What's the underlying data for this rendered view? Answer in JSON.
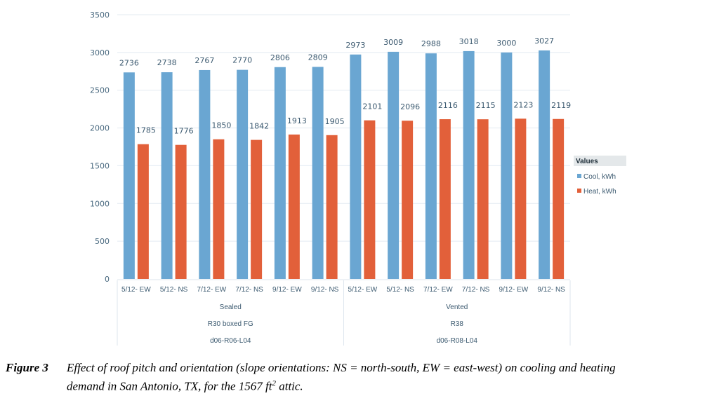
{
  "chart_data": {
    "type": "bar",
    "title": "",
    "xlabel": "",
    "ylabel": "",
    "ylim": [
      0,
      3500
    ],
    "yticks": [
      0,
      500,
      1000,
      1500,
      2000,
      2500,
      3000,
      3500
    ],
    "grid": true,
    "categories": [
      "5/12- EW",
      "5/12- NS",
      "7/12- EW",
      "7/12- NS",
      "9/12- EW",
      "9/12- NS",
      "5/12- EW",
      "5/12- NS",
      "7/12- EW",
      "7/12- NS",
      "9/12- EW",
      "9/12- NS"
    ],
    "groups": [
      {
        "labels": [
          "Sealed",
          "R30 boxed FG",
          "d06-R06-L04"
        ],
        "count": 6
      },
      {
        "labels": [
          "Vented",
          "R38",
          "d06-R08-L04"
        ],
        "count": 6
      }
    ],
    "series": [
      {
        "name": "Cool, kWh",
        "color": "#6aa6d2",
        "values": [
          2736,
          2738,
          2767,
          2770,
          2806,
          2809,
          2973,
          3009,
          2988,
          3018,
          3000,
          3027
        ]
      },
      {
        "name": "Heat, kWh",
        "color": "#e2603a",
        "values": [
          1785,
          1776,
          1850,
          1842,
          1913,
          1905,
          2101,
          2096,
          2116,
          2115,
          2123,
          2119
        ]
      }
    ],
    "legend": {
      "title": "Values",
      "position": "right"
    }
  },
  "caption": {
    "label": "Figure 3",
    "text_line1": "Effect of roof pitch and orientation (slope orientations: NS = north-south, EW = east-west) on cooling and heating",
    "text_line2_pre": "demand in San Antonio, TX, for the 1567 ft",
    "superscript": "2",
    "text_line2_post": " attic."
  }
}
